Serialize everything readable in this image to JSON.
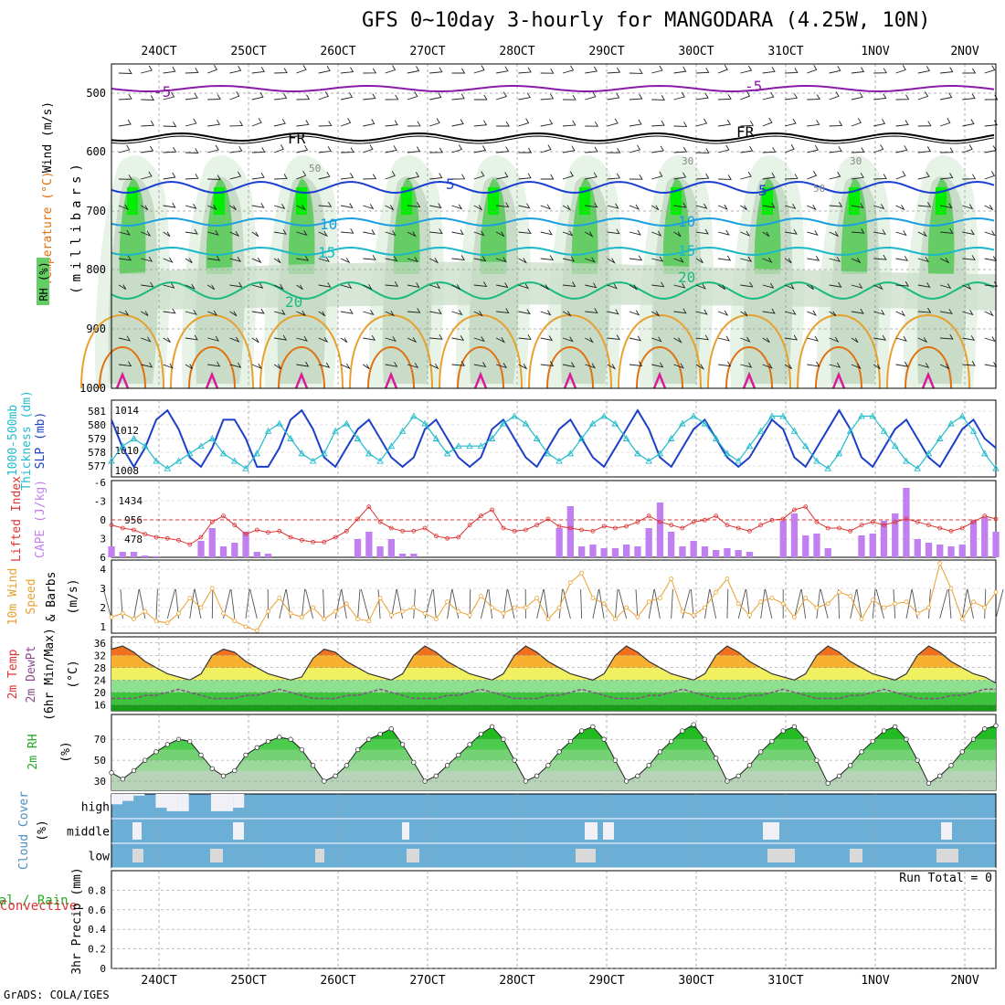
{
  "title": "GFS 0~10day 3-hourly for MANGODARA (4.25W, 10N)",
  "footer": "GrADS: COLA/IGES",
  "dates": [
    "24OCT",
    "25OCT",
    "26OCT",
    "27OCT",
    "28OCT",
    "29OCT",
    "30OCT",
    "31OCT",
    "1NOV",
    "2NOV"
  ],
  "colors": {
    "rh_light": "#e6f3e6",
    "rh_mid": "#c8dcc8",
    "rh_dark": "#aec4ae",
    "rh_green": "#66cc66",
    "rh_bright": "#00ee00",
    "slp": "#1d3fc8",
    "thickness": "#22bbcc",
    "li": "#dd3333",
    "cape": "#c080f0",
    "wind_speed": "#e8a030",
    "rh2m": "#22aa22",
    "cloud_bg": "#6baed6",
    "cloud_fill": "#f2f0f7",
    "cloud_gap": "#d9d9d9",
    "purple": "#8a1aa8",
    "blue": "#1a3fd0",
    "lightblue": "#1aa0e0",
    "cyan": "#1ab8c8",
    "teal": "#1aba80",
    "orange": "#e8a030",
    "orange_dark": "#e07010",
    "magenta": "#dd1a9a"
  },
  "panels": {
    "upper": {
      "label_wind": "Wind (m/s)",
      "label_temp": "Temperature (°C)",
      "label_rh": "RH (%)",
      "ylabel": "(millibars)",
      "levels": [
        "500",
        "600",
        "700",
        "800",
        "900",
        "1000"
      ],
      "contour_labels": [
        "-5",
        "-5",
        "FR",
        "FR",
        "5",
        "5",
        "10",
        "10",
        "15",
        "15",
        "20",
        "20",
        "30",
        "30",
        "50",
        "50"
      ]
    },
    "slp": {
      "label_thick": "Thickness (dm)",
      "label_thick2": "1000-500mb",
      "label_slp": "SLP (mb)",
      "left_ticks": [
        "581",
        "580",
        "579",
        "578",
        "577"
      ],
      "right_ticks": [
        "1014",
        "1012",
        "1010",
        "1008"
      ]
    },
    "cape": {
      "label_li": "Lifted Index",
      "label_cape": "CAPE (J/kg)",
      "left_ticks": [
        "-6",
        "-3",
        "0",
        "3",
        "6"
      ],
      "right_ticks": [
        "1434",
        "956",
        "478"
      ]
    },
    "wind": {
      "label_1": "10m Wind",
      "label_2": "Speed",
      "label_3": "& Barbs",
      "unit": "(m/s)",
      "ticks": [
        "4",
        "3",
        "2",
        "1"
      ]
    },
    "temp": {
      "label_1": "2m Temp",
      "label_2": "2m DewPt",
      "label_3": "(6hr Min/Max)",
      "unit": "(°C)",
      "ticks": [
        "36",
        "32",
        "28",
        "24",
        "20",
        "16"
      ]
    },
    "rh": {
      "label": "2m RH",
      "unit": "(%)",
      "ticks": [
        "70",
        "50",
        "30"
      ]
    },
    "cloud": {
      "label": "Cloud Cover",
      "unit": "(%)",
      "levels": [
        "high",
        "middle",
        "low"
      ]
    },
    "precip": {
      "label_1": "Total / Rain",
      "label_2": "Convective",
      "ylabel": "3hr Precip (mm)",
      "ticks": [
        "0.8",
        "0.6",
        "0.4",
        "0.2",
        "0"
      ],
      "run_total": "Run Total = 0"
    }
  },
  "chart_data": {
    "type": "meteogram",
    "title": "GFS 0~10day 3-hourly for MANGODARA (4.25W, 10N)",
    "x_categories": [
      "24OCT",
      "25OCT",
      "26OCT",
      "27OCT",
      "28OCT",
      "29OCT",
      "30OCT",
      "31OCT",
      "1NOV",
      "2NOV"
    ],
    "slp_mb": [
      1013,
      1010,
      1008,
      1010,
      1013,
      1014,
      1012,
      1009,
      1008,
      1010,
      1013,
      1013,
      1011,
      1008,
      1008,
      1010,
      1013,
      1014,
      1012,
      1009,
      1008,
      1010,
      1012,
      1013,
      1011,
      1009,
      1008,
      1009,
      1012,
      1013,
      1011,
      1009,
      1008,
      1009,
      1012,
      1013,
      1011,
      1009,
      1008,
      1010,
      1012,
      1013,
      1011,
      1009,
      1008,
      1010,
      1012,
      1014,
      1012,
      1009,
      1008,
      1010,
      1012,
      1013,
      1011,
      1009,
      1008,
      1009,
      1011,
      1013,
      1012,
      1009,
      1008,
      1010,
      1012,
      1014,
      1012,
      1009,
      1008,
      1010,
      1012,
      1013,
      1011,
      1009,
      1008,
      1010,
      1012,
      1013,
      1011,
      1010
    ],
    "thickness_dm": [
      577.5,
      578.5,
      579.0,
      578.5,
      577.5,
      577.0,
      577.5,
      578.0,
      578.5,
      579.0,
      578.0,
      577.5,
      577.0,
      578.0,
      579.5,
      580.0,
      579.0,
      578.0,
      577.5,
      578.0,
      579.5,
      580.0,
      579.0,
      578.0,
      577.5,
      578.5,
      579.5,
      580.5,
      580.0,
      579.0,
      578.0,
      578.5,
      578.5,
      578.5,
      579.0,
      580.0,
      580.5,
      580.0,
      579.0,
      578.0,
      577.5,
      578.0,
      579.0,
      580.0,
      580.5,
      580.0,
      579.0,
      578.0,
      577.5,
      578.0,
      579.0,
      580.0,
      580.5,
      580.0,
      579.0,
      578.0,
      577.5,
      578.5,
      579.5,
      580.5,
      580.5,
      579.5,
      578.5,
      577.5,
      577.0,
      578.0,
      579.5,
      580.5,
      580.5,
      579.5,
      578.5,
      577.5,
      577.0,
      578.0,
      579.0,
      580.0,
      580.5,
      579.5,
      578.0,
      577.0
    ],
    "lifted_index": [
      1.0,
      1.5,
      1.8,
      2.5,
      3.0,
      3.2,
      3.5,
      4.2,
      3.0,
      0.5,
      -0.5,
      1.0,
      2.5,
      1.8,
      2.2,
      2.0,
      3.0,
      3.5,
      3.8,
      3.8,
      3.0,
      2.0,
      0.0,
      -2.0,
      0.5,
      1.5,
      2.0,
      2.0,
      1.5,
      2.8,
      3.2,
      3.0,
      1.0,
      -0.5,
      -1.5,
      1.5,
      2.0,
      1.8,
      1.0,
      0.0,
      1.2,
      1.5,
      1.8,
      2.0,
      1.2,
      1.5,
      1.2,
      0.5,
      -0.5,
      0.5,
      1.0,
      1.5,
      0.5,
      0.2,
      -0.5,
      1.0,
      1.5,
      2.0,
      1.0,
      0.2,
      0.0,
      -1.5,
      -2.0,
      0.5,
      1.5,
      1.5,
      2.0,
      1.0,
      0.5,
      1.0,
      0.5,
      0.0,
      0.5,
      1.0,
      1.5,
      2.0,
      1.5,
      0.5,
      -0.5,
      0.0
    ],
    "cape_jkg": [
      300,
      150,
      150,
      50,
      30,
      0,
      0,
      0,
      450,
      800,
      300,
      400,
      700,
      150,
      100,
      0,
      0,
      0,
      0,
      0,
      0,
      0,
      500,
      700,
      300,
      500,
      100,
      100,
      0,
      0,
      0,
      0,
      0,
      0,
      0,
      0,
      0,
      0,
      0,
      0,
      800,
      1400,
      300,
      350,
      250,
      250,
      350,
      300,
      800,
      1500,
      700,
      300,
      450,
      300,
      200,
      250,
      200,
      150,
      0,
      0,
      1000,
      1200,
      600,
      650,
      250,
      0,
      0,
      600,
      650,
      1000,
      1200,
      1900,
      500,
      400,
      350,
      300,
      350,
      1000,
      1100,
      700
    ],
    "wind_speed_ms": [
      1.5,
      1.7,
      1.4,
      1.8,
      1.3,
      1.2,
      1.7,
      2.5,
      2.0,
      3.0,
      1.7,
      1.3,
      1.0,
      0.8,
      1.8,
      2.5,
      1.7,
      1.5,
      2.0,
      1.4,
      1.8,
      2.2,
      1.4,
      1.3,
      2.5,
      1.6,
      1.8,
      2.0,
      1.7,
      1.4,
      2.3,
      1.8,
      1.6,
      2.6,
      2.0,
      1.7,
      2.0,
      2.0,
      2.5,
      1.4,
      2.0,
      3.3,
      3.8,
      2.5,
      2.2,
      1.4,
      2.0,
      1.5,
      2.3,
      2.5,
      3.5,
      1.8,
      1.6,
      2.0,
      2.8,
      3.5,
      2.2,
      1.6,
      2.3,
      2.5,
      2.2,
      1.5,
      2.5,
      2.0,
      2.2,
      2.8,
      2.6,
      1.4,
      2.4,
      2.0,
      2.2,
      2.3,
      1.7,
      2.0,
      4.3,
      3.0,
      1.4,
      2.3,
      2.0,
      2.8
    ],
    "temp2m_c": [
      34,
      35,
      33,
      30,
      28,
      26,
      25,
      24,
      26,
      32,
      34,
      33,
      30,
      28,
      26,
      25,
      24,
      25,
      31,
      34,
      33,
      30,
      28,
      26,
      25,
      24,
      26,
      32,
      35,
      33,
      30,
      28,
      26,
      25,
      24,
      26,
      32,
      35,
      33,
      30,
      28,
      26,
      25,
      24,
      26,
      32,
      35,
      33,
      30,
      28,
      26,
      25,
      24,
      26,
      32,
      35,
      33,
      30,
      28,
      26,
      25,
      24,
      26,
      32,
      35,
      33,
      30,
      28,
      26,
      25,
      24,
      26,
      32,
      35,
      33,
      30,
      28,
      26,
      25,
      23
    ],
    "dewpt2m_c": [
      18,
      18,
      18,
      19,
      19,
      20,
      21,
      20,
      19,
      18,
      18,
      18,
      19,
      19,
      20,
      21,
      20,
      19,
      18,
      18,
      18,
      19,
      19,
      20,
      21,
      20,
      19,
      18,
      18,
      18,
      19,
      19,
      20,
      21,
      20,
      19,
      18,
      18,
      18,
      19,
      19,
      20,
      21,
      20,
      19,
      18,
      18,
      18,
      19,
      19,
      20,
      21,
      20,
      19,
      18,
      18,
      18,
      19,
      19,
      20,
      21,
      20,
      19,
      18,
      18,
      18,
      19,
      19,
      20,
      21,
      20,
      19,
      18,
      18,
      18,
      19,
      19,
      20,
      21,
      21
    ],
    "rh2m_pct": [
      38,
      32,
      40,
      50,
      58,
      65,
      70,
      68,
      55,
      42,
      35,
      40,
      55,
      62,
      68,
      72,
      70,
      60,
      45,
      30,
      35,
      45,
      60,
      70,
      75,
      80,
      65,
      48,
      30,
      35,
      45,
      55,
      65,
      75,
      82,
      70,
      50,
      30,
      35,
      45,
      58,
      68,
      78,
      82,
      70,
      50,
      30,
      35,
      45,
      58,
      68,
      78,
      84,
      70,
      52,
      30,
      35,
      45,
      58,
      68,
      78,
      82,
      70,
      50,
      28,
      35,
      45,
      58,
      68,
      78,
      82,
      70,
      50,
      28,
      35,
      45,
      58,
      70,
      80,
      83
    ],
    "cloud_high_pct": [
      60,
      40,
      10,
      0,
      80,
      100,
      100,
      0,
      0,
      100,
      100,
      80,
      0,
      0,
      0,
      0,
      0,
      0,
      0,
      0,
      0,
      0,
      0,
      0,
      0,
      0,
      0,
      0,
      0,
      0,
      0,
      0,
      0,
      0,
      0,
      0,
      0,
      0,
      0,
      0,
      0,
      0,
      0,
      0,
      0,
      0,
      0,
      0,
      0,
      0,
      0,
      0,
      0,
      0,
      0,
      0,
      0,
      0,
      0,
      0,
      0,
      0,
      0,
      0,
      0,
      0,
      0,
      0,
      0,
      0,
      0,
      0,
      0,
      0,
      0,
      0,
      0,
      0,
      0,
      0
    ],
    "precip_3hr_mm": [
      0,
      0,
      0,
      0,
      0,
      0,
      0,
      0,
      0,
      0
    ],
    "precip_ylim": [
      0,
      1
    ],
    "run_total_mm": 0
  }
}
